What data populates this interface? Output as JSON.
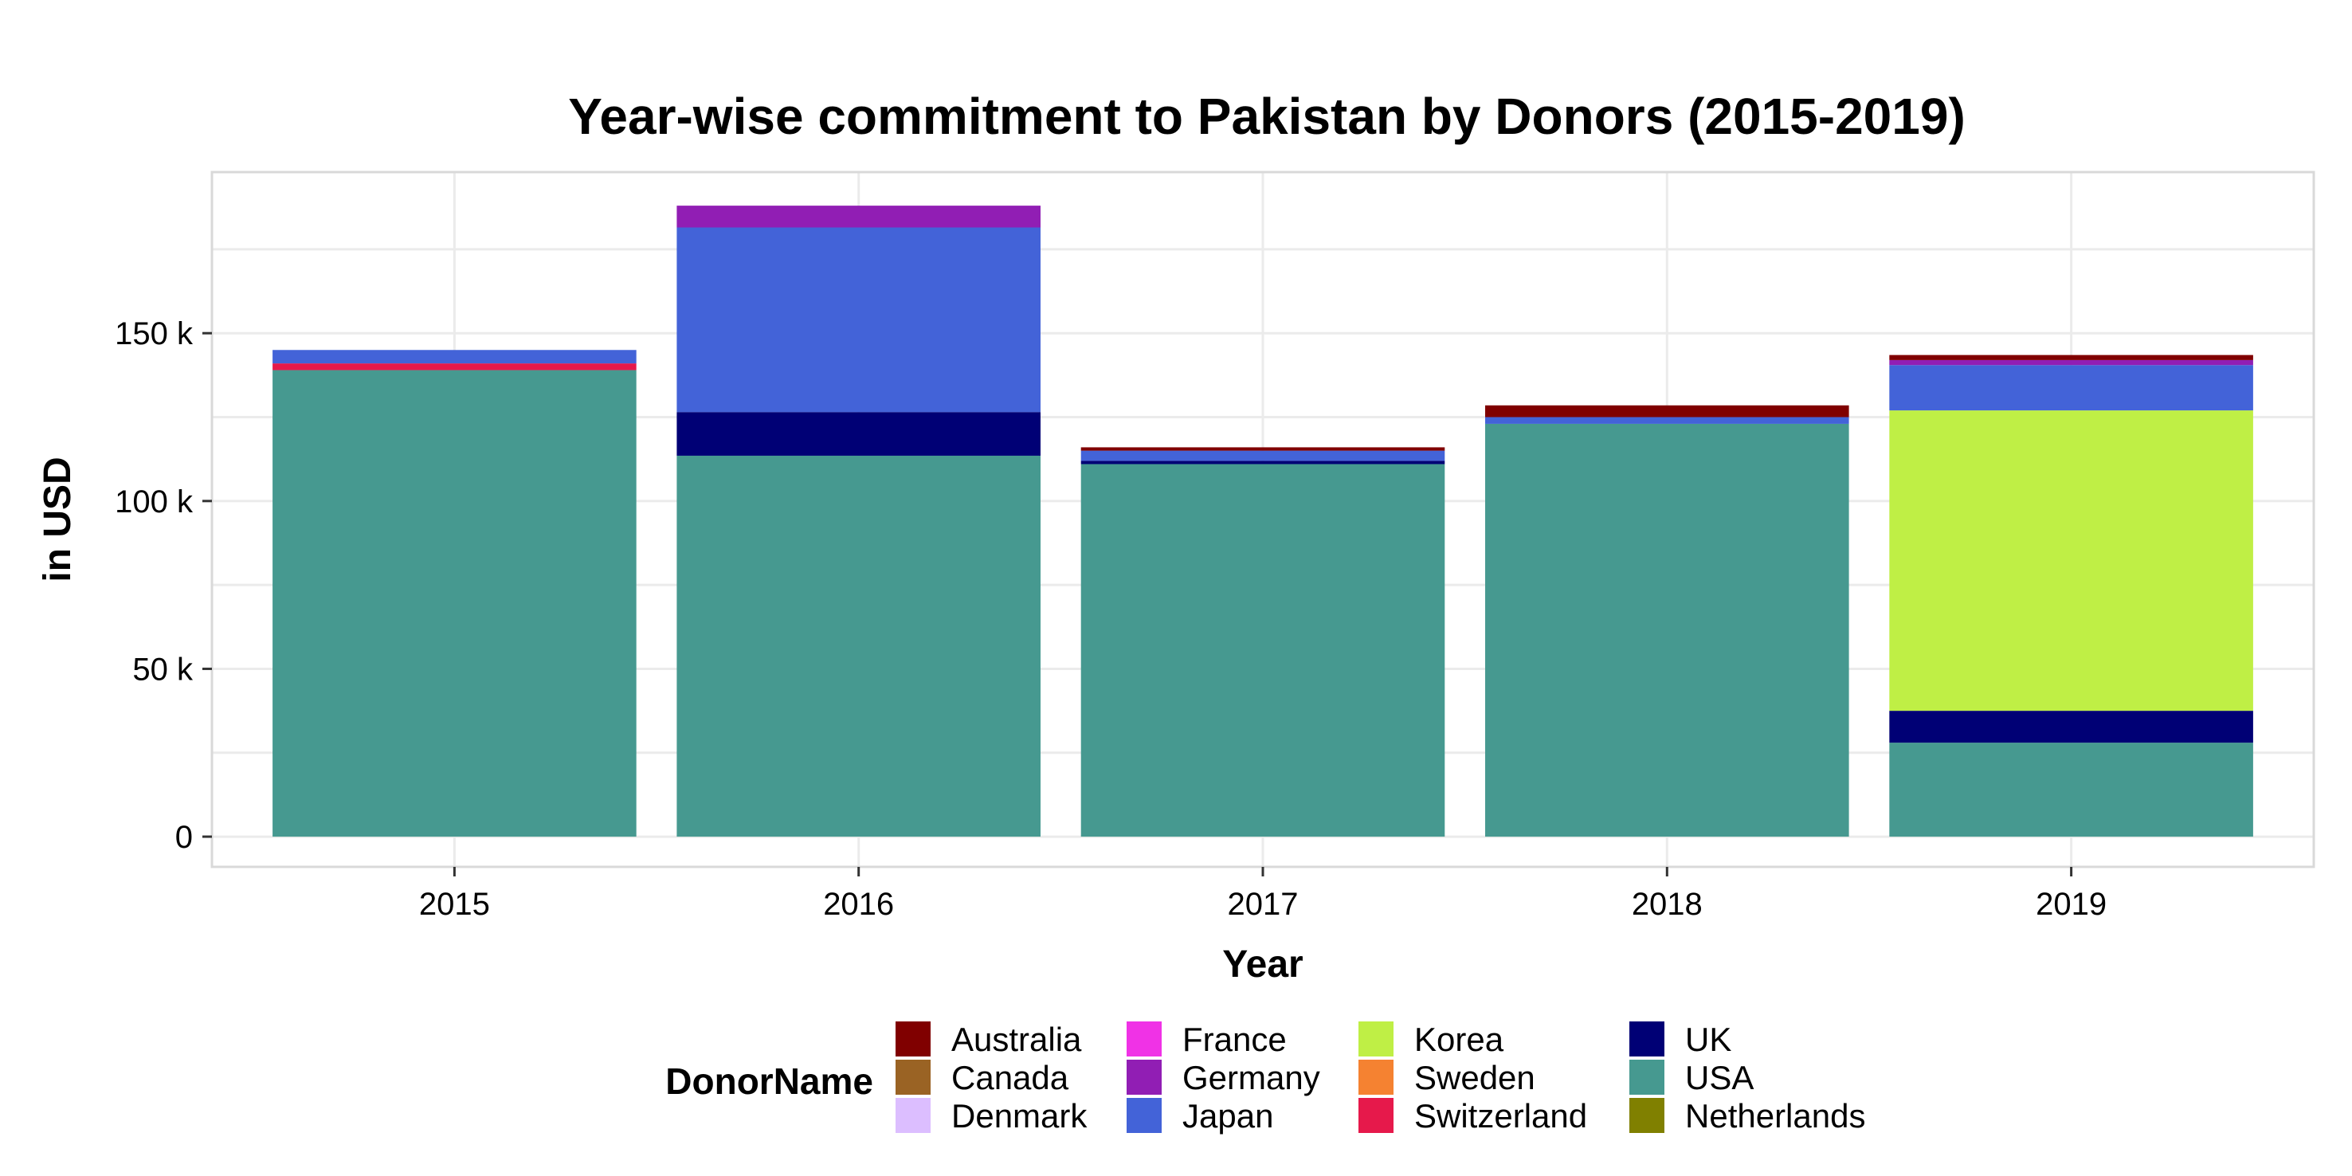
{
  "chart_data": {
    "type": "bar",
    "stacked": true,
    "title": "Year-wise commitment to Pakistan by Donors (2015-2019)",
    "xlabel": "Year",
    "ylabel": "in USD",
    "categories": [
      "2015",
      "2016",
      "2017",
      "2018",
      "2019"
    ],
    "ylim": [
      -9000,
      198000
    ],
    "yticks": [
      0,
      50000,
      100000,
      150000
    ],
    "ytick_labels": [
      "0",
      "50 k",
      "100 k",
      "150 k"
    ],
    "grid": true,
    "legend": {
      "title": "DonorName",
      "position": "bottom",
      "entries": [
        {
          "name": "Australia",
          "color": "#800000"
        },
        {
          "name": "Canada",
          "color": "#9a6324"
        },
        {
          "name": "Denmark",
          "color": "#dcbeff"
        },
        {
          "name": "France",
          "color": "#f032e6"
        },
        {
          "name": "Germany",
          "color": "#911eb4"
        },
        {
          "name": "Japan",
          "color": "#4363d8"
        },
        {
          "name": "Korea",
          "color": "#bfef45"
        },
        {
          "name": "Sweden",
          "color": "#f58231"
        },
        {
          "name": "Switzerland",
          "color": "#e6194b"
        },
        {
          "name": "UK",
          "color": "#000075"
        },
        {
          "name": "USA",
          "color": "#469990"
        },
        {
          "name": "Netherlands",
          "color": "#808000"
        }
      ]
    },
    "stack_order": [
      "USA",
      "UK",
      "Korea",
      "Switzerland",
      "Japan",
      "Germany",
      "Australia"
    ],
    "series": [
      {
        "name": "USA",
        "values": [
          139000,
          113500,
          111000,
          123000,
          28000
        ]
      },
      {
        "name": "UK",
        "values": [
          0,
          13000,
          1000,
          0,
          9500
        ]
      },
      {
        "name": "Korea",
        "values": [
          0,
          0,
          0,
          0,
          89500
        ]
      },
      {
        "name": "Switzerland",
        "values": [
          2000,
          0,
          0,
          0,
          0
        ]
      },
      {
        "name": "Japan",
        "values": [
          4000,
          55000,
          3000,
          2000,
          13500
        ]
      },
      {
        "name": "Germany",
        "values": [
          0,
          6500,
          0,
          0,
          1500
        ]
      },
      {
        "name": "Australia",
        "values": [
          0,
          0,
          1000,
          3500,
          1500
        ]
      }
    ]
  }
}
